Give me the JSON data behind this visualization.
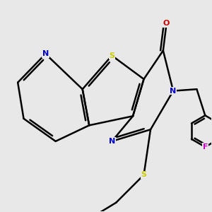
{
  "background_color": "#e8e8e8",
  "bond_color": "#000000",
  "S_color": "#cccc00",
  "N_color": "#0000cc",
  "O_color": "#cc0000",
  "F_color": "#cc00cc",
  "line_width": 1.8,
  "xlim": [
    -2.8,
    2.8
  ],
  "ylim": [
    -2.8,
    2.8
  ]
}
